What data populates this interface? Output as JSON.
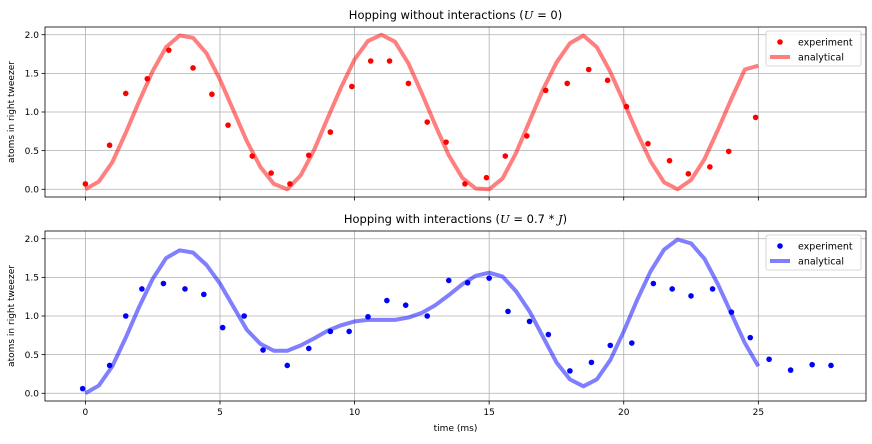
{
  "chart_data": [
    {
      "type": "line",
      "title": "Hopping without interactions (U = 0)",
      "title_parts": [
        "Hopping without interactions (",
        "U",
        " = 0)"
      ],
      "xlabel": "",
      "ylabel": "atoms in right tweezer",
      "xlim": [
        -1.5,
        29
      ],
      "ylim": [
        -0.1,
        2.1
      ],
      "xticks": [
        0,
        5,
        10,
        15,
        20,
        25
      ],
      "xtick_labels": [
        "",
        "",
        "",
        "",
        "",
        ""
      ],
      "yticks": [
        0.0,
        0.5,
        1.0,
        1.5,
        2.0
      ],
      "ytick_labels": [
        "0.0",
        "0.5",
        "1.0",
        "1.5",
        "2.0"
      ],
      "grid": true,
      "legend_position": "top-right",
      "series": [
        {
          "name": "experiment",
          "kind": "scatter",
          "color": "#ff0000",
          "x": [
            0.0,
            0.9,
            1.5,
            2.3,
            3.1,
            4.0,
            4.7,
            5.3,
            6.2,
            6.9,
            7.6,
            8.3,
            9.1,
            9.9,
            10.6,
            11.3,
            12.0,
            12.7,
            13.4,
            14.1,
            14.9,
            15.6,
            16.4,
            17.1,
            17.9,
            18.7,
            19.4,
            20.1,
            20.9,
            21.7,
            22.4,
            23.2,
            23.9,
            24.9
          ],
          "y": [
            0.07,
            0.57,
            1.24,
            1.43,
            1.8,
            1.57,
            1.23,
            0.83,
            0.43,
            0.21,
            0.07,
            0.44,
            0.74,
            1.33,
            1.66,
            1.66,
            1.37,
            0.87,
            0.61,
            0.07,
            0.15,
            0.43,
            0.69,
            1.28,
            1.37,
            1.55,
            1.41,
            1.07,
            0.59,
            0.37,
            0.2,
            0.29,
            0.49,
            0.93
          ]
        },
        {
          "name": "analytical",
          "kind": "line",
          "color": "#ff0000",
          "alpha": 0.5,
          "x": [
            0.0,
            0.5,
            1.0,
            1.5,
            2.0,
            2.5,
            3.0,
            3.5,
            4.0,
            4.5,
            5.0,
            5.5,
            6.0,
            6.5,
            7.0,
            7.5,
            8.0,
            8.5,
            9.0,
            9.5,
            10.0,
            10.5,
            11.0,
            11.5,
            12.0,
            12.5,
            13.0,
            13.5,
            14.0,
            14.5,
            15.0,
            15.5,
            16.0,
            16.5,
            17.0,
            17.5,
            18.0,
            18.5,
            19.0,
            19.5,
            20.0,
            20.5,
            21.0,
            21.5,
            22.0,
            22.5,
            23.0,
            23.5,
            24.0,
            24.5,
            25.0
          ],
          "y": [
            0.0,
            0.1,
            0.35,
            0.73,
            1.14,
            1.53,
            1.84,
            1.99,
            1.96,
            1.76,
            1.42,
            1.02,
            0.62,
            0.29,
            0.07,
            0.0,
            0.18,
            0.51,
            0.92,
            1.32,
            1.68,
            1.92,
            2.0,
            1.91,
            1.63,
            1.24,
            0.83,
            0.44,
            0.15,
            0.01,
            0.0,
            0.14,
            0.47,
            0.88,
            1.29,
            1.64,
            1.89,
            1.99,
            1.84,
            1.52,
            1.13,
            0.73,
            0.36,
            0.09,
            0.0,
            0.12,
            0.39,
            0.77,
            1.17,
            1.55,
            1.6
          ]
        }
      ]
    },
    {
      "type": "line",
      "title": "Hopping with interactions (U = 0.7 * J)",
      "title_parts": [
        "Hopping with interactions (",
        "U",
        " = 0.7 * ",
        "J",
        ")"
      ],
      "xlabel": "time (ms)",
      "ylabel": "atoms in right tweezer",
      "xlim": [
        -1.5,
        29
      ],
      "ylim": [
        -0.1,
        2.1
      ],
      "xticks": [
        0,
        5,
        10,
        15,
        20,
        25
      ],
      "xtick_labels": [
        "0",
        "5",
        "10",
        "15",
        "20",
        "25"
      ],
      "yticks": [
        0.0,
        0.5,
        1.0,
        1.5,
        2.0
      ],
      "ytick_labels": [
        "0.0",
        "0.5",
        "1.0",
        "1.5",
        "2.0"
      ],
      "grid": true,
      "legend_position": "top-right",
      "series": [
        {
          "name": "experiment",
          "kind": "scatter",
          "color": "#0000ff",
          "x": [
            -0.1,
            0.9,
            1.5,
            2.1,
            2.9,
            3.7,
            4.4,
            5.1,
            5.9,
            6.6,
            7.5,
            8.3,
            9.1,
            9.8,
            10.5,
            11.2,
            11.9,
            12.7,
            13.5,
            14.2,
            15.0,
            15.7,
            16.5,
            17.2,
            18.0,
            18.8,
            19.5,
            20.3,
            21.1,
            21.8,
            22.5,
            23.3,
            24.0,
            24.7,
            25.4,
            26.2,
            27.0,
            27.7
          ],
          "y": [
            0.06,
            0.36,
            1.0,
            1.35,
            1.42,
            1.35,
            1.28,
            0.85,
            1.0,
            0.56,
            0.36,
            0.58,
            0.8,
            0.8,
            0.99,
            1.2,
            1.14,
            1.0,
            1.46,
            1.43,
            1.49,
            1.06,
            0.93,
            0.76,
            0.29,
            0.4,
            0.62,
            0.65,
            1.42,
            1.35,
            1.26,
            1.35,
            1.05,
            0.72,
            0.44,
            0.3,
            0.37,
            0.36
          ]
        },
        {
          "name": "analytical",
          "kind": "line",
          "color": "#0000ff",
          "alpha": 0.5,
          "x": [
            0.0,
            0.5,
            1.0,
            1.5,
            2.0,
            2.5,
            3.0,
            3.5,
            4.0,
            4.5,
            5.0,
            5.5,
            6.0,
            6.5,
            7.0,
            7.5,
            8.0,
            8.5,
            9.0,
            9.5,
            10.0,
            10.5,
            11.0,
            11.5,
            12.0,
            12.5,
            13.0,
            13.5,
            14.0,
            14.5,
            15.0,
            15.5,
            16.0,
            16.5,
            17.0,
            17.5,
            18.0,
            18.5,
            19.0,
            19.5,
            20.0,
            20.5,
            21.0,
            21.5,
            22.0,
            22.5,
            23.0,
            23.5,
            24.0,
            24.5,
            25.0
          ],
          "y": [
            0.0,
            0.1,
            0.35,
            0.72,
            1.12,
            1.48,
            1.75,
            1.85,
            1.82,
            1.66,
            1.42,
            1.12,
            0.82,
            0.64,
            0.55,
            0.55,
            0.62,
            0.71,
            0.81,
            0.88,
            0.93,
            0.95,
            0.95,
            0.95,
            0.98,
            1.04,
            1.14,
            1.27,
            1.41,
            1.52,
            1.56,
            1.51,
            1.32,
            1.06,
            0.73,
            0.4,
            0.18,
            0.09,
            0.18,
            0.43,
            0.8,
            1.21,
            1.58,
            1.86,
            1.99,
            1.94,
            1.74,
            1.41,
            1.03,
            0.65,
            0.35
          ]
        }
      ]
    }
  ]
}
